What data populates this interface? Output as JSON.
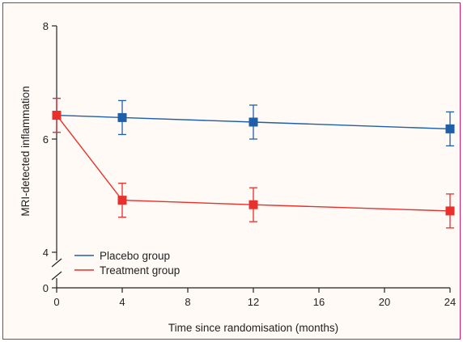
{
  "chart_data": {
    "type": "line",
    "title": "",
    "xlabel": "Time since randomisation (months)",
    "ylabel": "MRI-detected inflammation",
    "x": [
      0,
      4,
      12,
      24
    ],
    "xticks": [
      0,
      4,
      8,
      12,
      16,
      20,
      24
    ],
    "yticks": [
      0,
      4,
      6,
      8
    ],
    "xlim": [
      0,
      24
    ],
    "ylim": [
      4,
      8
    ],
    "y_axis_break": true,
    "y_break_bottom_value": 0,
    "grid": false,
    "legend_position": "bottom-left",
    "series": [
      {
        "name": "Placebo group",
        "color": "#1f5fa8",
        "values": [
          6.42,
          6.38,
          6.3,
          6.18
        ],
        "error_upper": [
          6.72,
          6.68,
          6.6,
          6.48
        ],
        "error_lower": [
          6.12,
          6.08,
          6.0,
          5.88
        ]
      },
      {
        "name": "Treatment group",
        "color": "#e8302d",
        "values": [
          6.42,
          4.92,
          4.84,
          4.73
        ],
        "error_upper": [
          6.72,
          5.22,
          5.14,
          5.03
        ],
        "error_lower": [
          6.12,
          4.62,
          4.54,
          4.43
        ]
      }
    ]
  }
}
